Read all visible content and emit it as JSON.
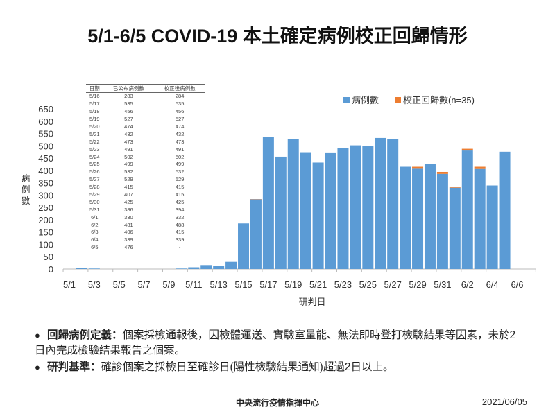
{
  "title": "5/1-6/5 COVID-19 本土確定病例校正回歸情形",
  "colors": {
    "cases": "#5b9bd5",
    "correction": "#ed7d31"
  },
  "chart_data": {
    "type": "bar",
    "stacked": true,
    "xlabel": "研判日",
    "ylabel": "病例數",
    "ylim": [
      0,
      650
    ],
    "yticks": [
      0,
      50,
      100,
      150,
      200,
      250,
      300,
      350,
      400,
      450,
      500,
      550,
      600,
      650
    ],
    "xticklabels": [
      "5/1",
      "5/3",
      "5/5",
      "5/7",
      "5/9",
      "5/11",
      "5/13",
      "5/15",
      "5/17",
      "5/19",
      "5/21",
      "5/23",
      "5/25",
      "5/27",
      "5/29",
      "5/31",
      "6/2",
      "6/4",
      "6/6"
    ],
    "legend": {
      "placement": "top-right",
      "entries": [
        "病例數",
        "校正回歸數(n=35)"
      ]
    },
    "categories": [
      "5/1",
      "5/2",
      "5/3",
      "5/4",
      "5/5",
      "5/6",
      "5/7",
      "5/8",
      "5/9",
      "5/10",
      "5/11",
      "5/12",
      "5/13",
      "5/14",
      "5/15",
      "5/16",
      "5/17",
      "5/18",
      "5/19",
      "5/20",
      "5/21",
      "5/22",
      "5/23",
      "5/24",
      "5/25",
      "5/26",
      "5/27",
      "5/28",
      "5/29",
      "5/30",
      "5/31",
      "6/1",
      "6/2",
      "6/3",
      "6/4",
      "6/5"
    ],
    "series": [
      {
        "name": "病例數",
        "values": [
          0,
          4,
          2,
          0,
          0,
          0,
          0,
          0,
          0,
          2,
          7,
          16,
          13,
          29,
          185,
          283,
          535,
          456,
          527,
          474,
          432,
          473,
          491,
          502,
          499,
          532,
          529,
          415,
          407,
          425,
          386,
          330,
          481,
          406,
          339,
          476
        ]
      },
      {
        "name": "校正回歸數(n=35)",
        "values": [
          0,
          0,
          0,
          0,
          0,
          0,
          0,
          0,
          0,
          0,
          0,
          0,
          0,
          0,
          0,
          1,
          0,
          0,
          0,
          0,
          0,
          0,
          0,
          0,
          0,
          0,
          0,
          0,
          8,
          0,
          8,
          2,
          7,
          9,
          0,
          0
        ]
      }
    ]
  },
  "table": {
    "headers": [
      "日期",
      "已公布病例數",
      "校正後病例數"
    ],
    "rows": [
      [
        "5/16",
        "283",
        "284"
      ],
      [
        "5/17",
        "535",
        "535"
      ],
      [
        "5/18",
        "456",
        "456"
      ],
      [
        "5/19",
        "527",
        "527"
      ],
      [
        "5/20",
        "474",
        "474"
      ],
      [
        "5/21",
        "432",
        "432"
      ],
      [
        "5/22",
        "473",
        "473"
      ],
      [
        "5/23",
        "491",
        "491"
      ],
      [
        "5/24",
        "502",
        "502"
      ],
      [
        "5/25",
        "499",
        "499"
      ],
      [
        "5/26",
        "532",
        "532"
      ],
      [
        "5/27",
        "529",
        "529"
      ],
      [
        "5/28",
        "415",
        "415"
      ],
      [
        "5/29",
        "407",
        "415"
      ],
      [
        "5/30",
        "425",
        "425"
      ],
      [
        "5/31",
        "386",
        "394"
      ],
      [
        "6/1",
        "330",
        "332"
      ],
      [
        "6/2",
        "481",
        "488"
      ],
      [
        "6/3",
        "406",
        "415"
      ],
      [
        "6/4",
        "339",
        "339"
      ],
      [
        "6/5",
        "476",
        "-"
      ]
    ]
  },
  "notes": [
    {
      "label": "回歸病例定義：",
      "text": "個案採檢通報後，因檢體運送、實驗室量能、無法即時登打檢驗結果等因素，未於2日內完成檢驗結果報告之個案。"
    },
    {
      "label": "研判基準：",
      "text": "確診個案之採檢日至確診日(陽性檢驗結果通知)超過2日以上。"
    }
  ],
  "footer": {
    "org": "中央流行疫情指揮中心",
    "date": "2021/06/05"
  }
}
